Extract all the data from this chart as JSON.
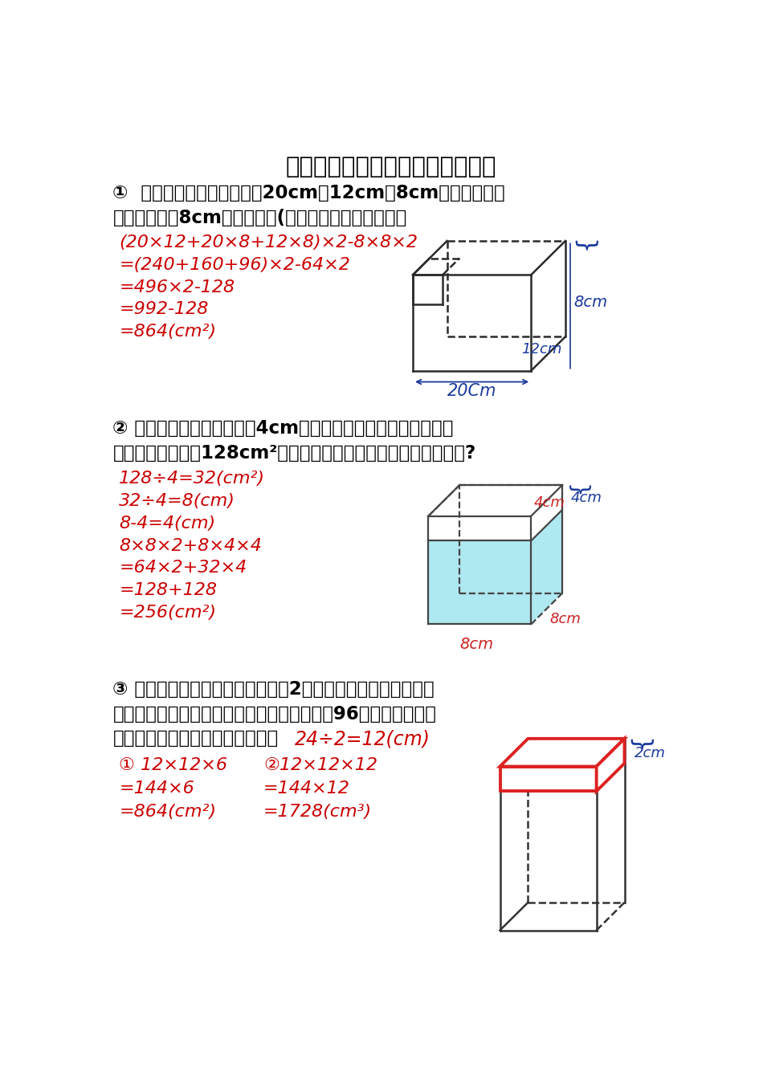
{
  "title": "长方体和正方体的表面积综合应用",
  "bg_color": "#ffffff",
  "black": "#000000",
  "red": "#cc0000",
  "blue_dark": "#1a1a8c",
  "title_fontsize": 21,
  "body_fontsize": 16.5,
  "sol_fontsize": 16,
  "problem1_q1": "①  在一个长、宽、高分别是20cm、12cm、8cm的长方体中切",
  "problem1_q2": "去一个棱长为8cm的正方体后(如图），求它的表面积。",
  "problem1_sol": [
    "(20×12+20×8+12×8)×2-8×8×2",
    "=(240+160+96)×2-64×2",
    "=496×2-128",
    "=992-128",
    "=864(cm²)"
  ],
  "problem2_q1": "② 一个长方体，如果高增加4cm，那么就变成一个正方体，这时",
  "problem2_q2": "表面积比原来增加128cm²。原来长方体的表面积是多少平方厘米?",
  "problem2_sol": [
    "128÷4=32(cm²)",
    "32÷4=8(cm)",
    "8-4=4(cm)",
    "8×8×2+8×4×4",
    "=64×2+32×4",
    "=128+128",
    "=256(cm²)"
  ],
  "problem3_q1": "③ 有一个正方体，如果它的高增加2厘米，就成了长方体，这个",
  "problem3_q2": "长方体的表面积就比原来的正方体表面积增加96平方厘米，原来",
  "problem3_q3_black": "正方体的表面积和体积各是多少？",
  "problem3_q3_red": "24÷2=12(cm)",
  "problem3_sol_col1": [
    "① 12×12×6",
    "=144×6",
    "=864(cm²)"
  ],
  "problem3_sol_col2": [
    "②12×12×12",
    "=144×12",
    "=1728(cm³)"
  ]
}
